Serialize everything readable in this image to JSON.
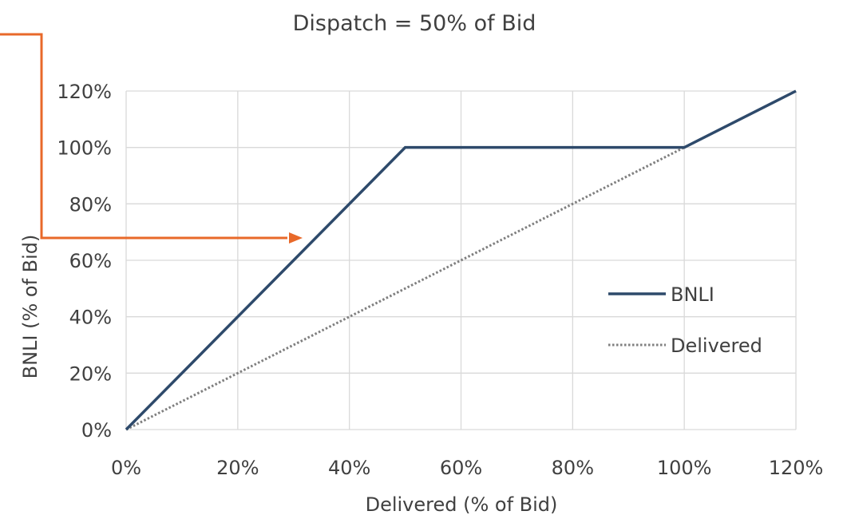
{
  "chart_data": {
    "type": "line",
    "title": "Dispatch = 50% of Bid",
    "xlabel": "Delivered (% of Bid)",
    "ylabel": "BNLI (% of Bid)",
    "xlim": [
      0,
      120
    ],
    "ylim": [
      0,
      120
    ],
    "x_ticks": [
      "0%",
      "20%",
      "40%",
      "60%",
      "80%",
      "100%",
      "120%"
    ],
    "y_ticks": [
      "0%",
      "20%",
      "40%",
      "60%",
      "80%",
      "100%",
      "120%"
    ],
    "grid": true,
    "legend_position": "right",
    "series": [
      {
        "name": "BNLI",
        "color": "#2e4a6b",
        "style": "solid",
        "x": [
          0,
          50,
          100,
          120
        ],
        "y": [
          0,
          100,
          100,
          120
        ]
      },
      {
        "name": "Delivered",
        "color": "#7f7f7f",
        "style": "dotted",
        "x": [
          0,
          120
        ],
        "y": [
          0,
          120
        ]
      }
    ],
    "annotations": [
      {
        "type": "arrow",
        "color": "#e8692a",
        "points_to": "BNLI line at 60%"
      }
    ]
  }
}
